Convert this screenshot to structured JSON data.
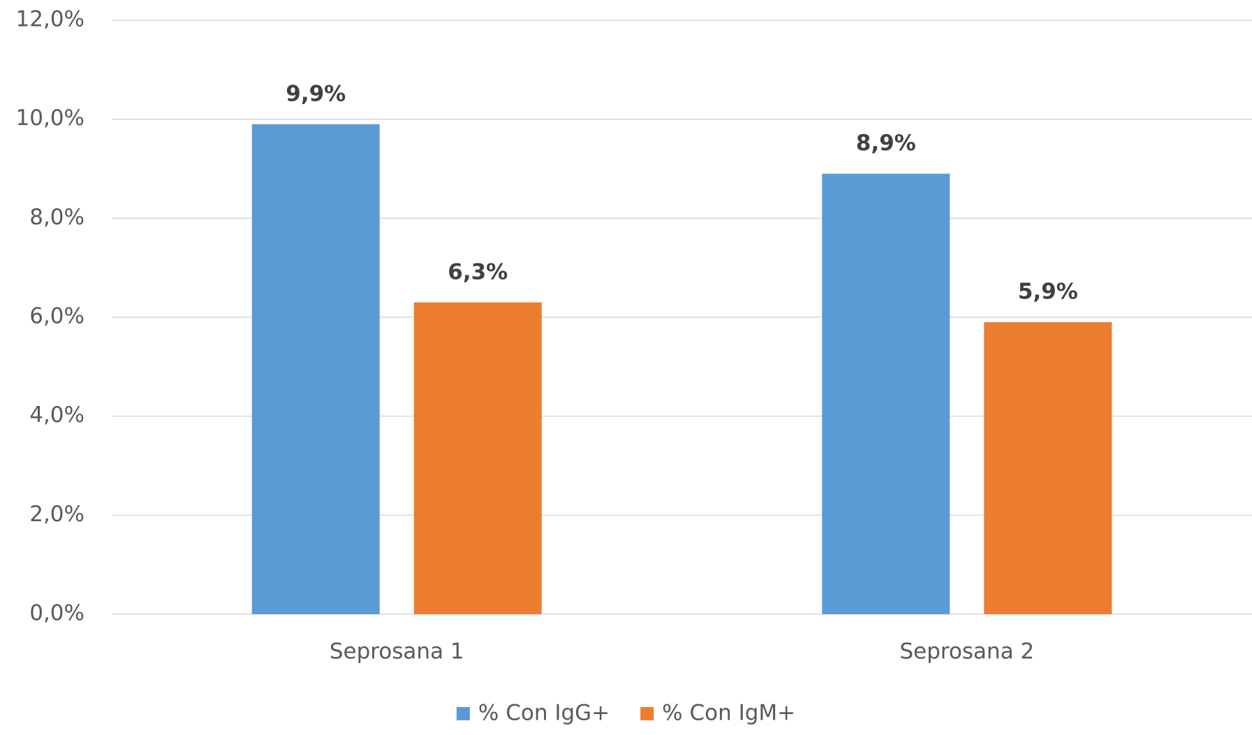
{
  "chart_data": {
    "type": "bar",
    "categories": [
      "Seprosana 1",
      "Seprosana 2"
    ],
    "series": [
      {
        "name": "% Con IgG+",
        "color": "#5b9bd5",
        "values": [
          9.9,
          8.9
        ],
        "value_labels": [
          "9,9%",
          "8,9%"
        ]
      },
      {
        "name": "% Con IgM+",
        "color": "#ed7d31",
        "values": [
          6.3,
          5.9
        ],
        "value_labels": [
          "6,3%",
          "5,9%"
        ]
      }
    ],
    "ylim": [
      0,
      12
    ],
    "yticks": [
      {
        "value": 0,
        "label": "0,0%"
      },
      {
        "value": 2,
        "label": "2,0%"
      },
      {
        "value": 4,
        "label": "4,0%"
      },
      {
        "value": 6,
        "label": "6,0%"
      },
      {
        "value": 8,
        "label": "8,0%"
      },
      {
        "value": 10,
        "label": "10,0%"
      },
      {
        "value": 12,
        "label": "12,0%"
      }
    ],
    "grid": true,
    "legend": "bottom"
  }
}
